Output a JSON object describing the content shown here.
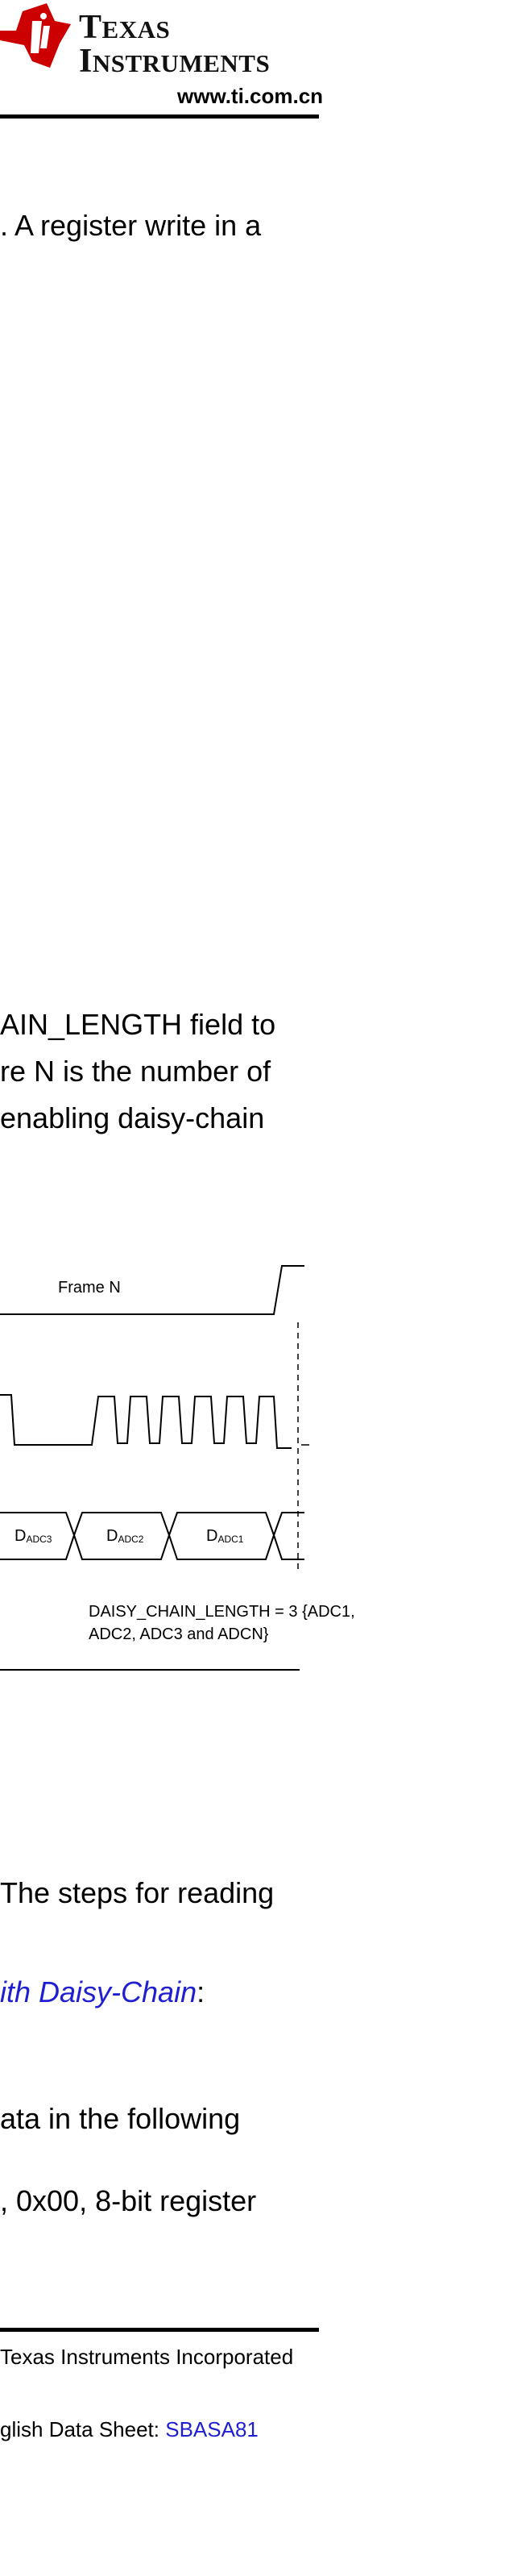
{
  "header": {
    "logo_word1_first": "T",
    "logo_word1_rest": "EXAS",
    "logo_word2_first": "I",
    "logo_word2_rest": "NSTRUMENTS",
    "url": "www.ti.com.cn",
    "logo_color": "#cc0000"
  },
  "body": {
    "line1": ". A register write in a",
    "line2": "AIN_LENGTH field to",
    "line3": "re N is the number of",
    "line4": " enabling daisy-chain",
    "line5": "The steps for reading",
    "line6_link": "ith Daisy-Chain",
    "line6_after": ":",
    "line7": "ata in the following",
    "line8": ", 0x00, 8-bit register"
  },
  "diagram": {
    "frame_label": "Frame N",
    "data_cells": [
      {
        "main": "D",
        "sub": "ADC3"
      },
      {
        "main": "D",
        "sub": "ADC2"
      },
      {
        "main": "D",
        "sub": "ADC1"
      }
    ],
    "caption_line1": "DAISY_CHAIN_LENGTH = 3 {ADC1,",
    "caption_line2": "ADC2, ADC3 and ADCN}"
  },
  "footer": {
    "copyright": "Texas Instruments Incorporated",
    "english_prefix": "glish Data Sheet: ",
    "english_link": "SBASA81",
    "link_color": "#1f1fd1"
  }
}
